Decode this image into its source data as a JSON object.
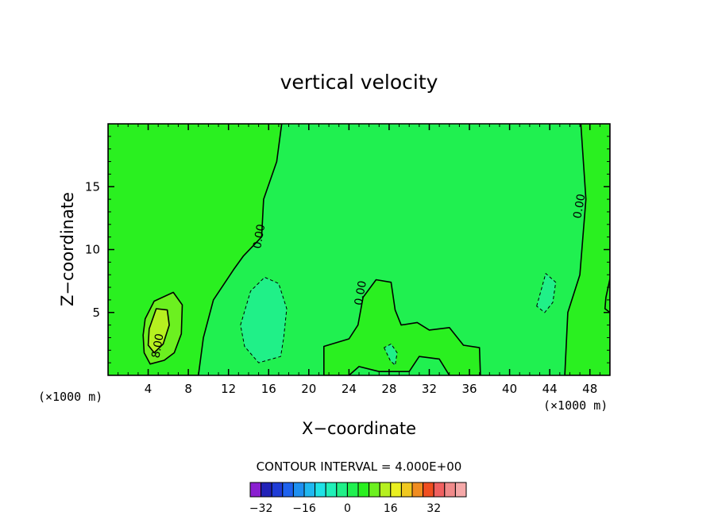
{
  "chart_data": {
    "type": "heatmap",
    "title": "vertical velocity",
    "xlabel": "X−coordinate",
    "ylabel": "Z−coordinate",
    "x_unit_left": "(×1000 m)",
    "x_unit_right": "(×1000 m)",
    "xlim": [
      0,
      50
    ],
    "ylim": [
      0,
      20
    ],
    "x_ticks": [
      4,
      8,
      12,
      16,
      20,
      24,
      28,
      32,
      36,
      40,
      44,
      48
    ],
    "x_tick_labels": [
      "4",
      "8",
      "12",
      "16",
      "20",
      "24",
      "28",
      "32",
      "36",
      "40",
      "44",
      "48"
    ],
    "y_ticks": [
      5,
      10,
      15
    ],
    "y_tick_labels": [
      "5",
      "10",
      "15"
    ],
    "contour_interval_text": "CONTOUR INTERVAL = 4.000E+00",
    "contour_labels": [
      {
        "text": "0.00",
        "x": 15.4,
        "y": 11.0
      },
      {
        "text": "0.00",
        "x": 25.5,
        "y": 6.5
      },
      {
        "text": "0.00",
        "x": 47.3,
        "y": 13.4
      },
      {
        "text": "8.00",
        "x": 5.3,
        "y": 2.3
      }
    ],
    "colorbar": {
      "levels_start": -36,
      "level_step": 4,
      "colors": [
        "#8a1fd0",
        "#2222b8",
        "#1f3cd6",
        "#1e62ee",
        "#1e90f0",
        "#1fb8f0",
        "#1fe2e6",
        "#20f0b8",
        "#20f088",
        "#20f050",
        "#2af020",
        "#6cf020",
        "#b6f020",
        "#eaf020",
        "#f0c820",
        "#f08c20",
        "#f04e20",
        "#f06060",
        "#f08a8a",
        "#f5a8a8"
      ],
      "tick_values": [
        -32,
        -16,
        0,
        16,
        32
      ],
      "tick_labels": [
        "−32",
        "−16",
        "0",
        "16",
        "32"
      ]
    },
    "background_level_color": "#20f050",
    "fields": [
      {
        "level": "0-4",
        "color": "#2af020",
        "outline": [
          [
            0,
            8
          ],
          [
            2,
            8.2
          ],
          [
            4,
            9.6
          ],
          [
            5,
            9.2
          ],
          [
            6,
            10.4
          ],
          [
            6.5,
            8.4
          ],
          [
            8,
            8
          ],
          [
            9.5,
            7.3
          ],
          [
            9.5,
            5
          ],
          [
            8.5,
            2.5
          ],
          [
            6.5,
            1.2
          ],
          [
            5,
            0.5
          ],
          [
            3.5,
            0.8
          ],
          [
            0,
            0
          ]
        ]
      },
      {
        "level": "0-4",
        "color": "#2af020",
        "outline": [
          [
            0,
            20
          ],
          [
            17.3,
            20
          ],
          [
            16.8,
            17
          ],
          [
            15.5,
            14
          ],
          [
            15.3,
            11
          ],
          [
            13.5,
            9.5
          ],
          [
            12.5,
            8.4
          ],
          [
            10.5,
            6
          ],
          [
            9.5,
            3
          ],
          [
            9,
            0
          ],
          [
            0,
            0
          ]
        ]
      },
      {
        "level": "0-4",
        "color": "#2af020",
        "outline": [
          [
            46,
            20
          ],
          [
            50,
            20
          ],
          [
            50,
            0
          ],
          [
            45.5,
            0
          ],
          [
            45.8,
            5
          ],
          [
            47,
            8
          ],
          [
            47.3,
            11
          ],
          [
            47.6,
            14
          ],
          [
            47.1,
            20
          ]
        ]
      },
      {
        "level": "0-4",
        "color": "#2af020",
        "outline": [
          [
            21.5,
            2.3
          ],
          [
            24,
            2.9
          ],
          [
            24.9,
            4
          ],
          [
            25.4,
            6.2
          ],
          [
            26.7,
            7.6
          ],
          [
            28.2,
            7.4
          ],
          [
            28.6,
            5.2
          ],
          [
            29.2,
            4
          ],
          [
            30.8,
            4.2
          ],
          [
            32,
            3.6
          ],
          [
            34,
            3.8
          ],
          [
            35.4,
            2.4
          ],
          [
            37,
            2.2
          ],
          [
            37.1,
            0
          ],
          [
            34,
            0
          ],
          [
            33,
            1.3
          ],
          [
            31,
            1.5
          ],
          [
            30,
            0.3
          ],
          [
            27,
            0.3
          ],
          [
            25,
            0.7
          ],
          [
            24,
            0
          ],
          [
            21.5,
            0
          ]
        ]
      },
      {
        "level": "4-8",
        "color": "#6cf020",
        "outline": [
          [
            3.7,
            4.5
          ],
          [
            4.6,
            5.9
          ],
          [
            6.5,
            6.6
          ],
          [
            7.4,
            5.6
          ],
          [
            7.3,
            3.3
          ],
          [
            6.6,
            1.8
          ],
          [
            5.6,
            1.2
          ],
          [
            4.2,
            0.9
          ],
          [
            3.6,
            1.8
          ],
          [
            3.5,
            3.2
          ]
        ]
      },
      {
        "level": "8-12",
        "color": "#b6f020",
        "outline": [
          [
            4.1,
            3.7
          ],
          [
            4.8,
            5.3
          ],
          [
            5.9,
            5.2
          ],
          [
            6.1,
            4
          ],
          [
            5.5,
            2.5
          ],
          [
            4.6,
            1.8
          ],
          [
            4,
            2.4
          ]
        ]
      },
      {
        "level": "-4-0",
        "color": "#20f088",
        "outline": [
          [
            13.2,
            4
          ],
          [
            14.2,
            6.7
          ],
          [
            15.6,
            7.8
          ],
          [
            17,
            7.3
          ],
          [
            17.8,
            5.3
          ],
          [
            17.5,
            3
          ],
          [
            17.2,
            1.5
          ],
          [
            15,
            1
          ],
          [
            13.6,
            2.3
          ]
        ]
      },
      {
        "level": "-4-0",
        "color": "#20f088",
        "outline": [
          [
            42.7,
            5.5
          ],
          [
            43.6,
            8.1
          ],
          [
            44.6,
            7.4
          ],
          [
            44.3,
            5.8
          ],
          [
            43.5,
            5
          ]
        ]
      },
      {
        "level": "-4-0",
        "color": "#20f088",
        "outline": [
          [
            27.5,
            2.2
          ],
          [
            28.1,
            1.2
          ],
          [
            28.6,
            0.8
          ],
          [
            28.8,
            1.8
          ],
          [
            28.2,
            2.5
          ]
        ]
      },
      {
        "level": "0-4",
        "color": "#2af020",
        "outline": [
          [
            49.6,
            6.2
          ],
          [
            50,
            7.7
          ],
          [
            50,
            5
          ],
          [
            49.5,
            5.3
          ]
        ]
      }
    ]
  }
}
